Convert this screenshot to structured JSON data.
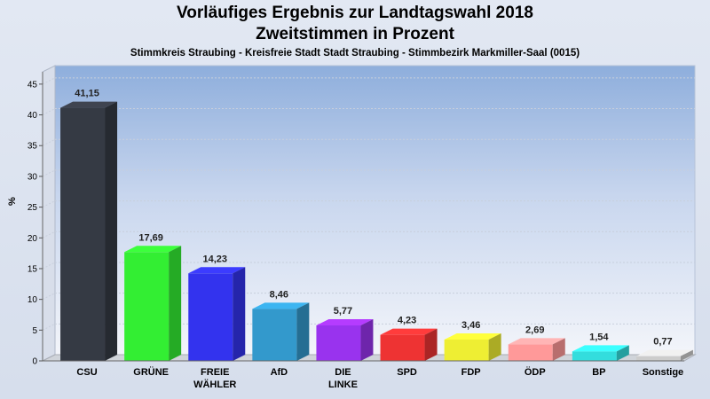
{
  "header": {
    "title_line1": "Vorläufiges Ergebnis zur Landtagswahl 2018",
    "title_line2": "Zweitstimmen in Prozent",
    "subtitle": "Stimmkreis Straubing - Kreisfreie Stadt Stadt Straubing - Stimmbezirk Markmiller-Saal (0015)"
  },
  "chart_data": {
    "type": "bar",
    "title": "Vorläufiges Ergebnis zur Landtagswahl 2018",
    "subtitle": "Zweitstimmen in Prozent",
    "xlabel": "",
    "ylabel": "%",
    "ylim": [
      0,
      47
    ],
    "yticks": [
      0,
      5,
      10,
      15,
      20,
      25,
      30,
      35,
      40,
      45
    ],
    "grid": true,
    "categories": [
      [
        "CSU"
      ],
      [
        "GRÜNE"
      ],
      [
        "FREIE",
        "WÄHLER"
      ],
      [
        "AfD"
      ],
      [
        "DIE",
        "LINKE"
      ],
      [
        "SPD"
      ],
      [
        "FDP"
      ],
      [
        "ÖDP"
      ],
      [
        "BP"
      ],
      [
        "Sonstige"
      ]
    ],
    "values": [
      41.15,
      17.69,
      14.23,
      8.46,
      5.77,
      4.23,
      3.46,
      2.69,
      1.54,
      0.77
    ],
    "value_labels": [
      "41,15",
      "17,69",
      "14,23",
      "8,46",
      "5,77",
      "4,23",
      "3,46",
      "2,69",
      "1,54",
      "0,77"
    ],
    "colors": [
      "#353a44",
      "#33ee33",
      "#3333ee",
      "#3399cc",
      "#9933ee",
      "#ee3333",
      "#eeee33",
      "#ff9999",
      "#33dddd",
      "#cccccc"
    ]
  }
}
